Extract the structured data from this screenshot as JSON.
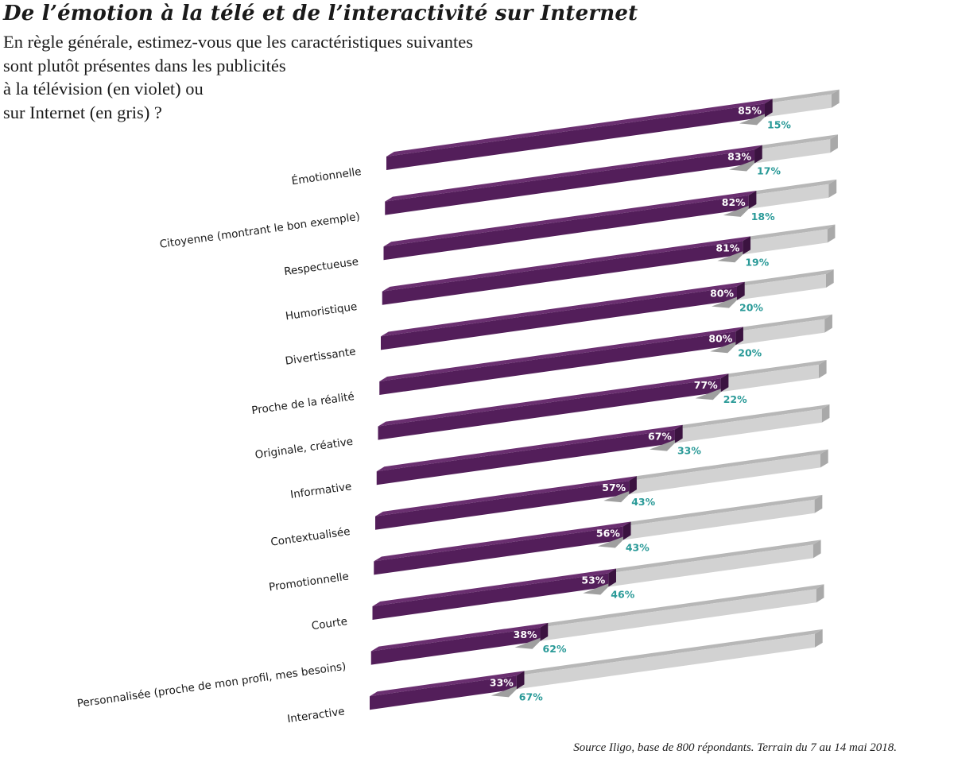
{
  "title": "De l’émotion à la télé et de l’interactivité sur Internet",
  "subtitle": "En règle générale, estimez-vous que les caractéristiques suivantes\nsont plutôt présentes dans les publicités\nà la télévision (en violet) ou\nsur Internet (en gris) ?",
  "source": "Source Iligo, base de 800 répondants. Terrain du 7 au 14 mai 2018.",
  "colors": {
    "tv_front": "#531e5a",
    "tv_top": "#6a2f70",
    "tv_end": "#3b1340",
    "net_front": "#d2d2d2",
    "net_top": "#b7b7b7",
    "net_end": "#a9a9a9",
    "net_label": "#2a9a98"
  },
  "chart_data": {
    "type": "bar",
    "orientation": "horizontal-stacked-3d",
    "categories": [
      "Émotionnelle",
      "Citoyenne (montrant le bon exemple)",
      "Respectueuse",
      "Humoristique",
      "Divertissante",
      "Proche de la réalité",
      "Originale, créative",
      "Informative",
      "Contextualisée",
      "Promotionnelle",
      "Courte",
      "Personnalisée (proche de mon profil, mes besoins)",
      "Interactive"
    ],
    "series": [
      {
        "values": [
          85,
          83,
          82,
          81,
          80,
          80,
          77,
          67,
          57,
          56,
          53,
          38,
          33
        ],
        "labels": [
          "85%",
          "83%",
          "82%",
          "81%",
          "80%",
          "80%",
          "77%",
          "67%",
          "57%",
          "56%",
          "53%",
          "38%",
          "33%"
        ]
      },
      {
        "values": [
          15,
          17,
          18,
          19,
          20,
          20,
          22,
          33,
          43,
          43,
          46,
          62,
          67
        ],
        "labels": [
          "15%",
          "17%",
          "18%",
          "19%",
          "20%",
          "20%",
          "22%",
          "33%",
          "43%",
          "43%",
          "46%",
          "62%",
          "67%"
        ]
      }
    ],
    "xlim": [
      0,
      100
    ]
  }
}
